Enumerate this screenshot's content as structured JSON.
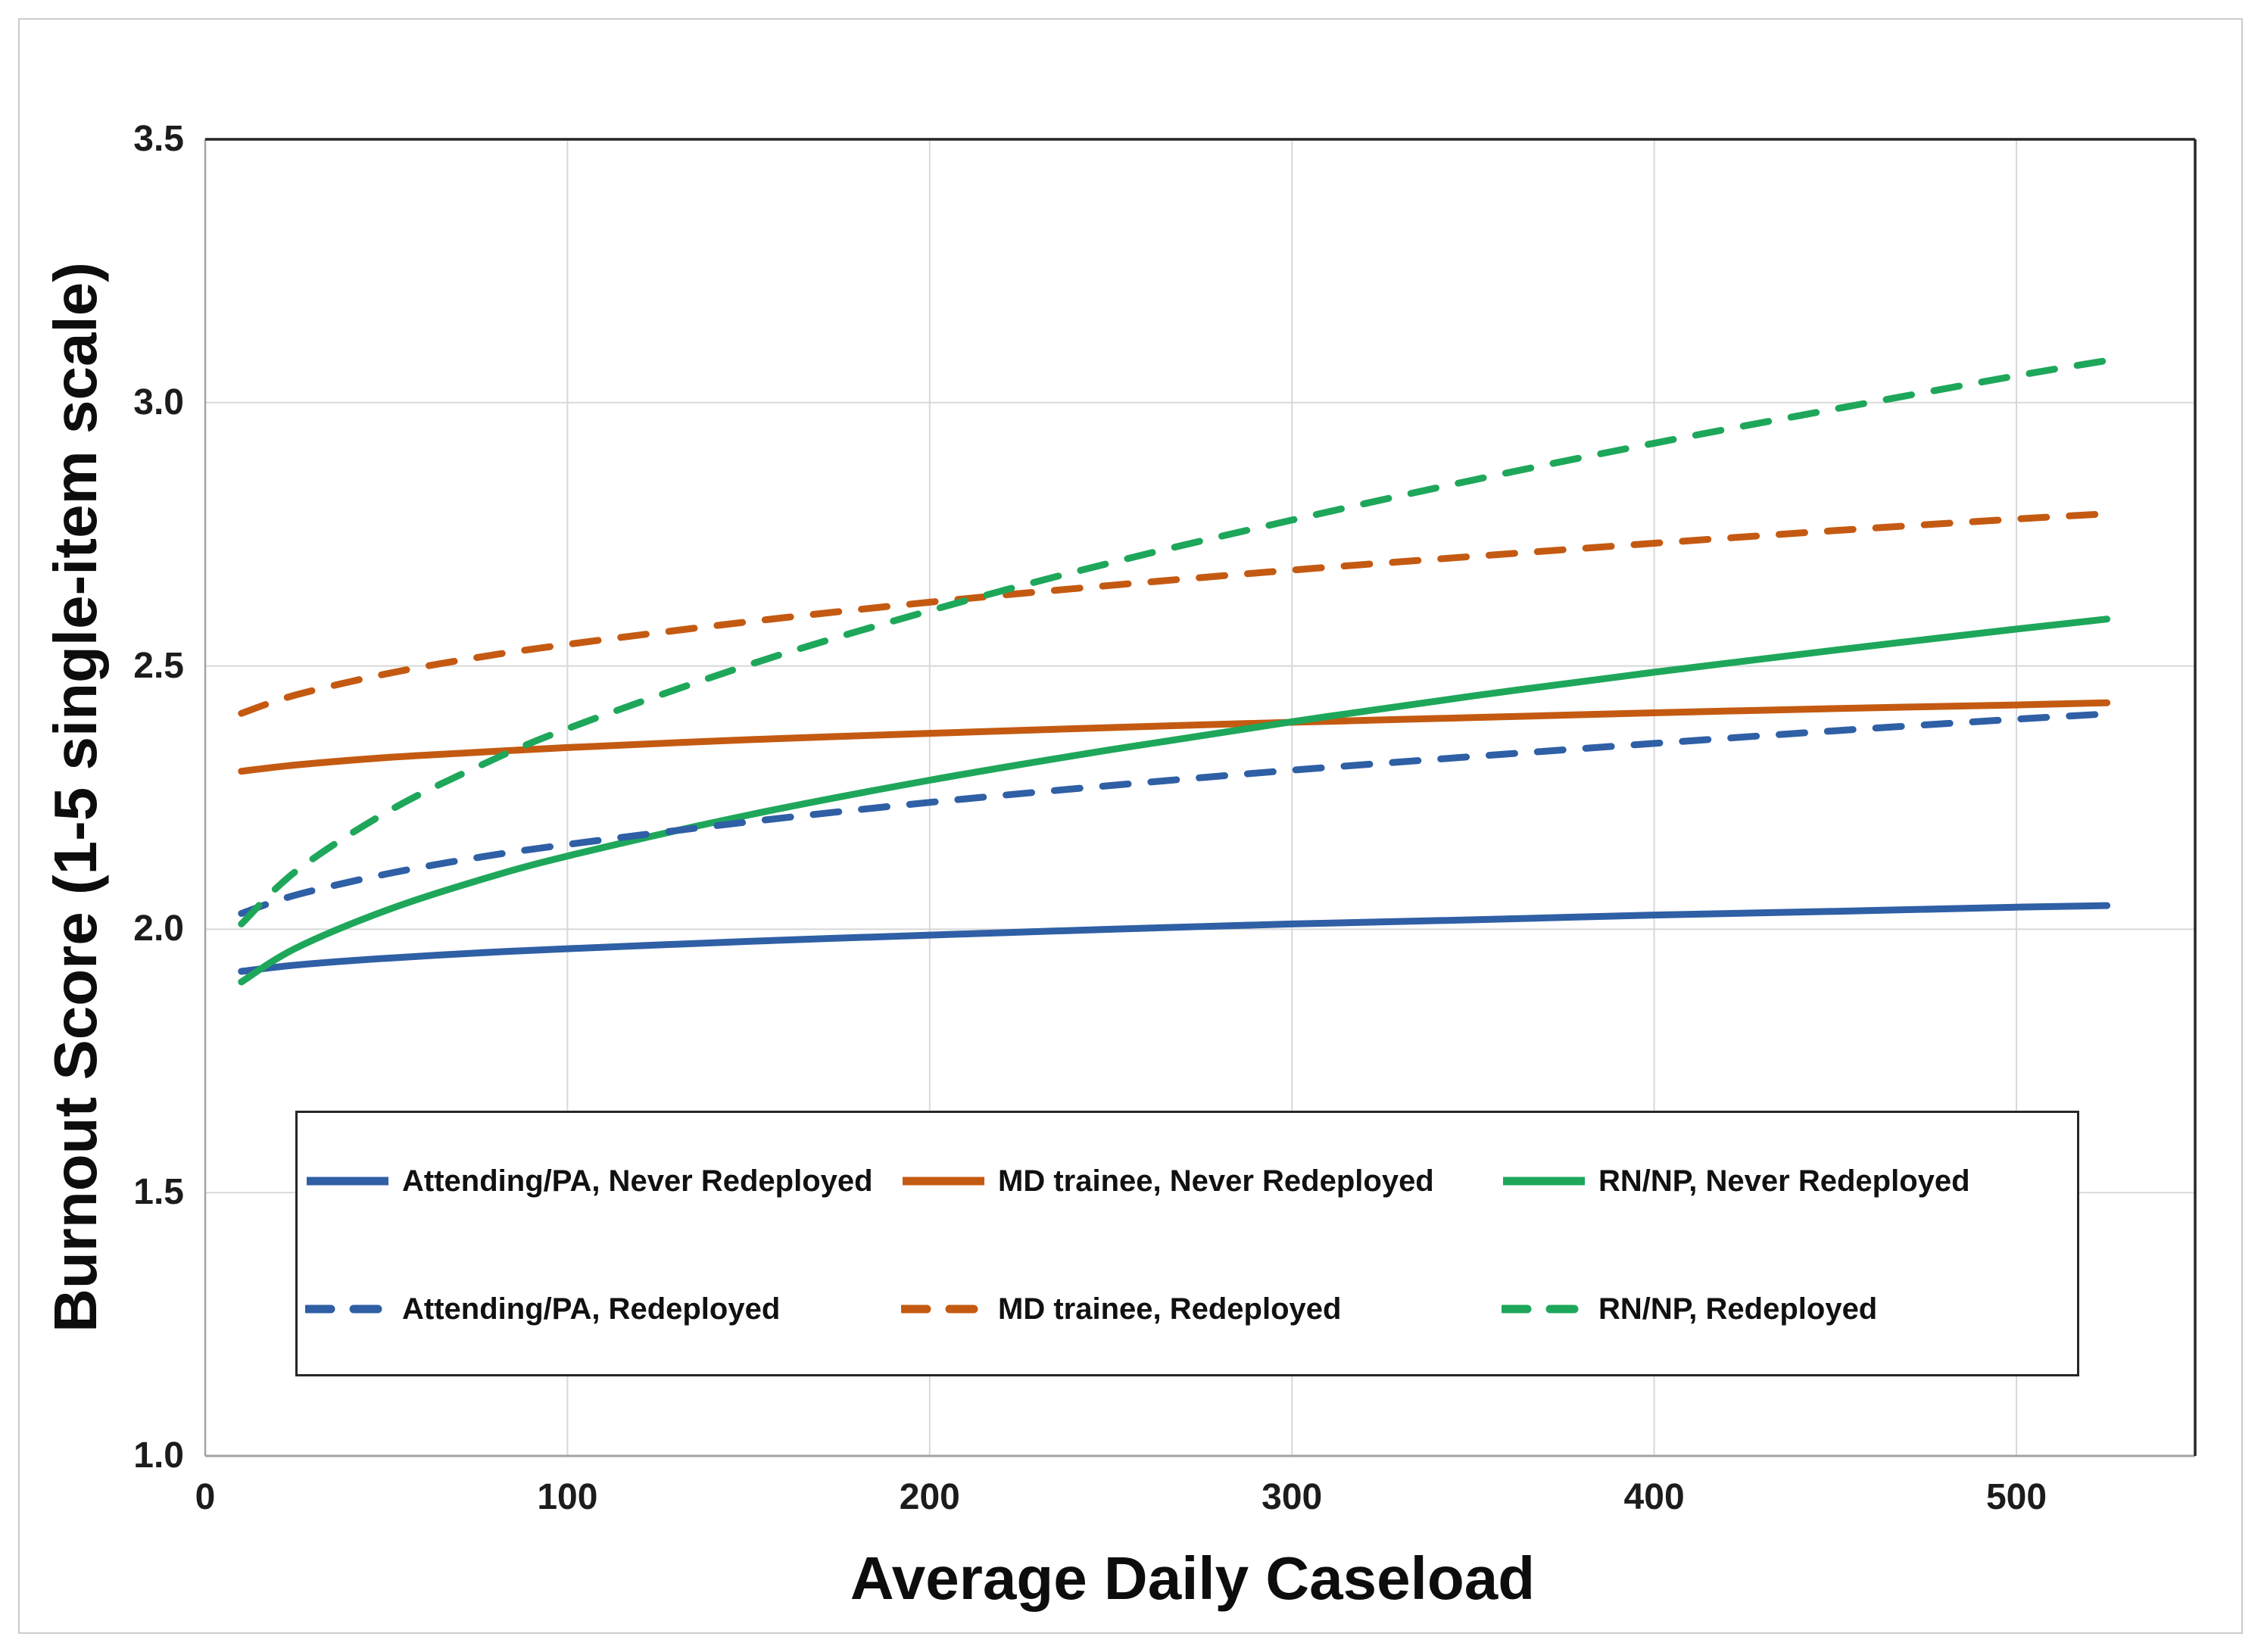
{
  "chart_data": {
    "type": "line",
    "title": "",
    "xlabel": "Average Daily Caseload",
    "ylabel": "Burnout Score (1-5 single-item scale)",
    "grid": true,
    "legend_position": "inside-bottom",
    "background_color": "#ffffff",
    "gridline_color": "#d8d8d8",
    "axis_line_color": "#a3a3a3",
    "plot_border_color": "#262626",
    "x_axis": {
      "min": 0,
      "max": 550,
      "ticks": [
        {
          "label": "0",
          "value": 0
        },
        {
          "label": "100",
          "value": 100
        },
        {
          "label": "200",
          "value": 200
        },
        {
          "label": "300",
          "value": 300
        },
        {
          "label": "400",
          "value": 400
        },
        {
          "label": "500",
          "value": 500
        }
      ]
    },
    "y_axis": {
      "min": 1.0,
      "max": 3.5,
      "ticks": [
        {
          "label": "1.0",
          "value": 1.0
        },
        {
          "label": "1.5",
          "value": 1.5
        },
        {
          "label": "2.0",
          "value": 2.0
        },
        {
          "label": "2.5",
          "value": 2.5
        },
        {
          "label": "3.0",
          "value": 3.0
        },
        {
          "label": "3.5",
          "value": 3.5
        }
      ]
    },
    "x_samples": [
      10,
      25,
      50,
      75,
      100,
      150,
      200,
      250,
      300,
      350,
      400,
      450,
      500,
      525
    ],
    "series": [
      {
        "name": "Attending/PA, Never Redeployed",
        "color": "#2F5FA5",
        "line_style": "solid",
        "values": [
          1.92,
          1.932,
          1.945,
          1.955,
          1.963,
          1.977,
          1.989,
          2.0,
          2.01,
          2.018,
          2.027,
          2.034,
          2.042,
          2.045
        ]
      },
      {
        "name": "MD trainee, Never Redeployed",
        "color": "#C45A12",
        "line_style": "solid",
        "values": [
          2.3,
          2.312,
          2.326,
          2.336,
          2.345,
          2.36,
          2.372,
          2.383,
          2.393,
          2.402,
          2.411,
          2.419,
          2.426,
          2.43
        ]
      },
      {
        "name": "RN/NP, Never Redeployed",
        "color": "#1EA75A",
        "line_style": "solid",
        "values": [
          1.9,
          1.964,
          2.036,
          2.092,
          2.139,
          2.217,
          2.283,
          2.341,
          2.394,
          2.443,
          2.488,
          2.53,
          2.57,
          2.589
        ]
      },
      {
        "name": "Attending/PA, Redeployed",
        "color": "#2F5FA5",
        "line_style": "dashed",
        "values": [
          2.03,
          2.065,
          2.105,
          2.136,
          2.161,
          2.204,
          2.241,
          2.273,
          2.302,
          2.328,
          2.353,
          2.377,
          2.399,
          2.409
        ]
      },
      {
        "name": "MD trainee, Redeployed",
        "color": "#C45A12",
        "line_style": "dashed",
        "values": [
          2.41,
          2.445,
          2.485,
          2.516,
          2.541,
          2.584,
          2.621,
          2.653,
          2.682,
          2.708,
          2.733,
          2.757,
          2.779,
          2.789
        ]
      },
      {
        "name": "RN/NP, Redeployed",
        "color": "#1EA75A",
        "line_style": "dashed",
        "values": [
          2.01,
          2.11,
          2.222,
          2.308,
          2.381,
          2.502,
          2.605,
          2.696,
          2.777,
          2.853,
          2.923,
          2.988,
          3.051,
          3.08
        ]
      }
    ]
  }
}
